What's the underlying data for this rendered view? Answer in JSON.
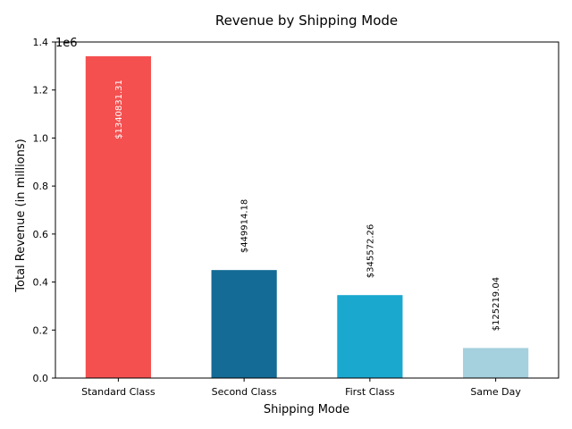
{
  "chart_data": {
    "type": "bar",
    "title": "Revenue by Shipping Mode",
    "xlabel": "Shipping Mode",
    "ylabel": "Total Revenue (in millions)",
    "y_offset_label": "1e6",
    "categories": [
      "Standard Class",
      "Second Class",
      "First Class",
      "Same Day"
    ],
    "values": [
      1340831.31,
      449914.18,
      345572.26,
      125219.04
    ],
    "data_labels": [
      "$1340831.31",
      "$449914.18",
      "$345572.26",
      "$125219.04"
    ],
    "colors": [
      "#f45050",
      "#146b95",
      "#1aa8cf",
      "#a5d0de"
    ],
    "label_colors": [
      "#ffffff",
      "#000000",
      "#000000",
      "#000000"
    ],
    "ylim": [
      0,
      1400000
    ],
    "yticks": [
      0,
      200000,
      400000,
      600000,
      800000,
      1000000,
      1200000,
      1400000
    ],
    "ytick_labels": [
      "0.0",
      "0.2",
      "0.4",
      "0.6",
      "0.8",
      "1.0",
      "1.2",
      "1.4"
    ],
    "grid": false,
    "legend": "none"
  }
}
